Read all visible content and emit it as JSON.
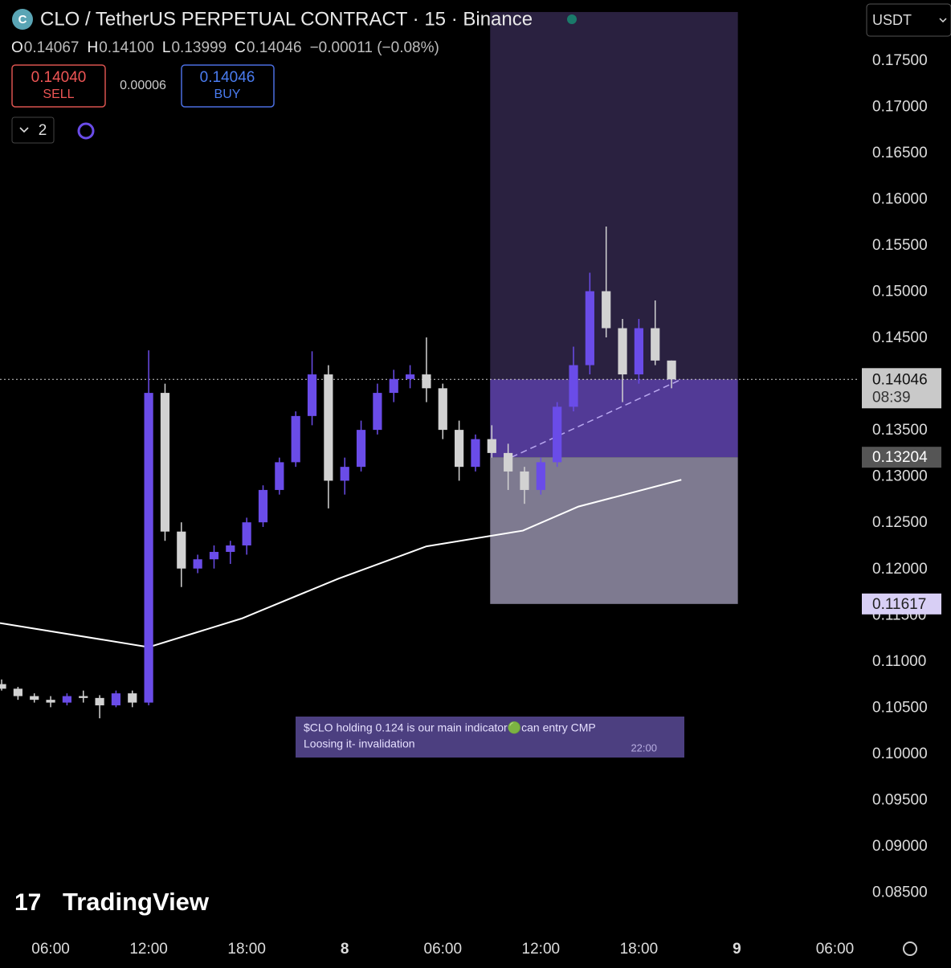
{
  "header": {
    "title": "CLO / TetherUS PERPETUAL CONTRACT · 15 · Binance",
    "ohlc": [
      {
        "key": "O",
        "value": "0.14067"
      },
      {
        "key": "H",
        "value": "0.14100"
      },
      {
        "key": "L",
        "value": "0.13999"
      },
      {
        "key": "C",
        "value": "0.14046"
      }
    ],
    "change": "−0.00011 (−0.08%)",
    "sell_price": "0.14040",
    "sell_label": "SELL",
    "spread": "0.00006",
    "buy_price": "0.14046",
    "buy_label": "BUY",
    "indicators_count": "2",
    "currency": "USDT"
  },
  "message": {
    "line1": "$CLO holding 0.124 is our main indicator🟢can entry CMP",
    "line2": "Loosing it- invalidation",
    "time": "22:00"
  },
  "logo": "TradingView",
  "chart_data": {
    "type": "candlestick",
    "up_color": "#6a4ce8",
    "down_color": "#d2d2d2",
    "xlim": [
      2.9,
      55.5
    ],
    "ylim": [
      0.0807,
      0.1815
    ],
    "xticks": [
      {
        "value": 6,
        "label": "06:00"
      },
      {
        "value": 12,
        "label": "12:00"
      },
      {
        "value": 18,
        "label": "18:00"
      },
      {
        "value": 24,
        "label": "8"
      },
      {
        "value": 30,
        "label": "06:00"
      },
      {
        "value": 36,
        "label": "12:00"
      },
      {
        "value": 42,
        "label": "18:00"
      },
      {
        "value": 48,
        "label": "9"
      },
      {
        "value": 54,
        "label": "06:00"
      }
    ],
    "yticks": [
      {
        "value": 0.085,
        "label": "0.08500"
      },
      {
        "value": 0.09,
        "label": "0.09000"
      },
      {
        "value": 0.095,
        "label": "0.09500"
      },
      {
        "value": 0.1,
        "label": "0.10000"
      },
      {
        "value": 0.105,
        "label": "0.10500"
      },
      {
        "value": 0.11,
        "label": "0.11000"
      },
      {
        "value": 0.115,
        "label": "0.11500"
      },
      {
        "value": 0.12,
        "label": "0.12000"
      },
      {
        "value": 0.125,
        "label": "0.12500"
      },
      {
        "value": 0.13,
        "label": "0.13000"
      },
      {
        "value": 0.135,
        "label": "0.13500"
      },
      {
        "value": 0.14,
        "label": "0.14000"
      },
      {
        "value": 0.145,
        "label": "0.14500"
      },
      {
        "value": 0.15,
        "label": "0.15000"
      },
      {
        "value": 0.155,
        "label": "0.15500"
      },
      {
        "value": 0.16,
        "label": "0.16000"
      },
      {
        "value": 0.165,
        "label": "0.16500"
      },
      {
        "value": 0.17,
        "label": "0.17000"
      },
      {
        "value": 0.175,
        "label": "0.17500"
      }
    ],
    "x": [
      3,
      4,
      5,
      6,
      7,
      8,
      9,
      10,
      11,
      12,
      13,
      14,
      15,
      16,
      17,
      18,
      19,
      20,
      21,
      22,
      23,
      24,
      25,
      26,
      27,
      28,
      29,
      30,
      31,
      32,
      33,
      34,
      35,
      36,
      37,
      38,
      39,
      40,
      41,
      42,
      43,
      44
    ],
    "open": [
      0.1075,
      0.107,
      0.1062,
      0.1058,
      0.1055,
      0.1062,
      0.106,
      0.1052,
      0.1065,
      0.1055,
      0.139,
      0.124,
      0.12,
      0.121,
      0.1218,
      0.1225,
      0.125,
      0.1285,
      0.1315,
      0.1365,
      0.141,
      0.1295,
      0.131,
      0.135,
      0.139,
      0.1405,
      0.141,
      0.1395,
      0.135,
      0.131,
      0.134,
      0.1325,
      0.1305,
      0.1285,
      0.1315,
      0.1375,
      0.142,
      0.15,
      0.146,
      0.141,
      0.146,
      0.1425
    ],
    "high": [
      0.108,
      0.1072,
      0.1065,
      0.1062,
      0.1065,
      0.1068,
      0.1063,
      0.1068,
      0.1068,
      0.1436,
      0.14,
      0.125,
      0.1215,
      0.1225,
      0.123,
      0.1255,
      0.129,
      0.132,
      0.137,
      0.1435,
      0.142,
      0.132,
      0.136,
      0.14,
      0.1415,
      0.142,
      0.145,
      0.14,
      0.136,
      0.1345,
      0.1355,
      0.1335,
      0.131,
      0.132,
      0.138,
      0.144,
      0.152,
      0.157,
      0.147,
      0.147,
      0.149,
      0.1425
    ],
    "low": [
      0.1068,
      0.1058,
      0.1055,
      0.105,
      0.1052,
      0.1055,
      0.1038,
      0.105,
      0.105,
      0.1052,
      0.123,
      0.118,
      0.1195,
      0.12,
      0.1205,
      0.1215,
      0.1245,
      0.128,
      0.131,
      0.1355,
      0.1265,
      0.128,
      0.1305,
      0.1345,
      0.138,
      0.1395,
      0.138,
      0.134,
      0.1295,
      0.1305,
      0.132,
      0.1285,
      0.127,
      0.128,
      0.131,
      0.137,
      0.141,
      0.145,
      0.138,
      0.14,
      0.142,
      0.1395
    ],
    "close": [
      0.107,
      0.1062,
      0.1058,
      0.1055,
      0.1062,
      0.106,
      0.1052,
      0.1065,
      0.1055,
      0.139,
      0.124,
      0.12,
      0.121,
      0.1218,
      0.1225,
      0.125,
      0.1285,
      0.1315,
      0.1365,
      0.141,
      0.1295,
      0.131,
      0.135,
      0.139,
      0.1405,
      0.141,
      0.1395,
      0.135,
      0.131,
      0.134,
      0.1325,
      0.1305,
      0.1285,
      0.1315,
      0.1375,
      0.142,
      0.15,
      0.146,
      0.141,
      0.146,
      0.1425,
      0.14046
    ],
    "moving_average": {
      "color": "#ffffff",
      "x": [
        2.9,
        12,
        17.7,
        23.6,
        29,
        34.9,
        38.3,
        44.6
      ],
      "values": [
        0.1141,
        0.1115,
        0.1146,
        0.1189,
        0.1224,
        0.1241,
        0.1267,
        0.1296
      ]
    },
    "current_price": {
      "value": 0.14046,
      "label": "0.14046",
      "countdown": "08:39"
    },
    "position": {
      "x": [
        32.9,
        48.06
      ],
      "target": 0.1802,
      "entry": {
        "value": 0.13204,
        "label": "0.13204"
      },
      "stop": {
        "value": 0.11617,
        "label": "0.11617"
      },
      "trend_x": [
        34.2,
        44.6
      ]
    }
  }
}
